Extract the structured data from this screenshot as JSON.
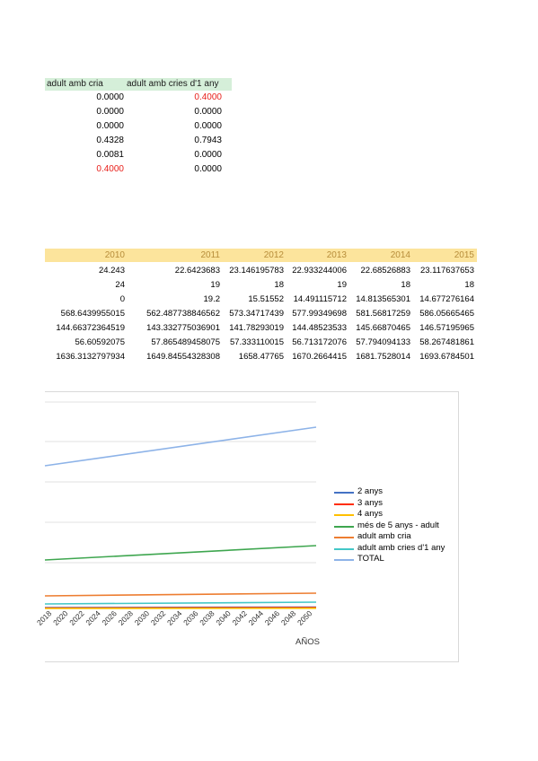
{
  "table_top": {
    "headers": [
      "adult amb cria",
      "adult amb cries d'1 any"
    ],
    "rows": [
      [
        {
          "v": "0.0000",
          "red": false
        },
        {
          "v": "0.4000",
          "red": true
        }
      ],
      [
        {
          "v": "0.0000",
          "red": false
        },
        {
          "v": "0.0000",
          "red": false
        }
      ],
      [
        {
          "v": "0.0000",
          "red": false
        },
        {
          "v": "0.0000",
          "red": false
        }
      ],
      [
        {
          "v": "0.4328",
          "red": false
        },
        {
          "v": "0.7943",
          "red": false
        }
      ],
      [
        {
          "v": "0.0081",
          "red": false
        },
        {
          "v": "0.0000",
          "red": false
        }
      ],
      [
        {
          "v": "0.4000",
          "red": true
        },
        {
          "v": "0.0000",
          "red": false
        }
      ]
    ]
  },
  "table_years": {
    "headers": [
      "2010",
      "2011",
      "2012",
      "2013",
      "2014",
      "2015"
    ],
    "rows": [
      [
        "24.243",
        "22.6423683",
        "23.146195783",
        "22.933244006",
        "22.68526883",
        "23.117637653"
      ],
      [
        "24",
        "19",
        "18",
        "19",
        "18",
        "18"
      ],
      [
        "0",
        "19.2",
        "15.51552",
        "14.491115712",
        "14.813565301",
        "14.677276164"
      ],
      [
        "568.6439955015",
        "562.487738846562",
        "573.34717439",
        "577.99349698",
        "581.56817259",
        "586.05665465"
      ],
      [
        "144.6637236451​9",
        "143.332775036901",
        "141.78293019",
        "144.48523533",
        "145.66870465",
        "146.57195965"
      ],
      [
        "56.60592075",
        "57.865489458075",
        "57.333110015",
        "56.713172076",
        "57.794094133",
        "58.267481861"
      ],
      [
        "1636.3132797934",
        "1649.84554328308",
        "1658.47765",
        "1670.2664415",
        "1681.7528014",
        "1693.6784501"
      ]
    ]
  },
  "chart_data": {
    "type": "line",
    "xlabel": "AÑOS",
    "ylabel": "",
    "x": [
      "2018",
      "2020",
      "2022",
      "2024",
      "2026",
      "2028",
      "2030",
      "2032",
      "2034",
      "2036",
      "2038",
      "2040",
      "2042",
      "2044",
      "2046",
      "2048",
      "2050"
    ],
    "grid": true,
    "legend_position": "right",
    "series": [
      {
        "name": "2 anys",
        "color": "#4472c4",
        "start": 22,
        "end": 24
      },
      {
        "name": "3 anys",
        "color": "#ff2d00",
        "start": 18,
        "end": 19
      },
      {
        "name": "4 anys",
        "color": "#ffc000",
        "start": 15,
        "end": 16
      },
      {
        "name": "més de 5 anys - adult",
        "color": "#3ea64f",
        "start": 640,
        "end": 710
      },
      {
        "name": "adult amb cria",
        "color": "#ed7d31",
        "start": 150,
        "end": 165
      },
      {
        "name": "adult amb cries d'1 any",
        "color": "#43c7c7",
        "start": 60,
        "end": 66
      },
      {
        "name": "TOTAL",
        "color": "#8db3e8",
        "start": 1770,
        "end": 2050
      }
    ]
  }
}
